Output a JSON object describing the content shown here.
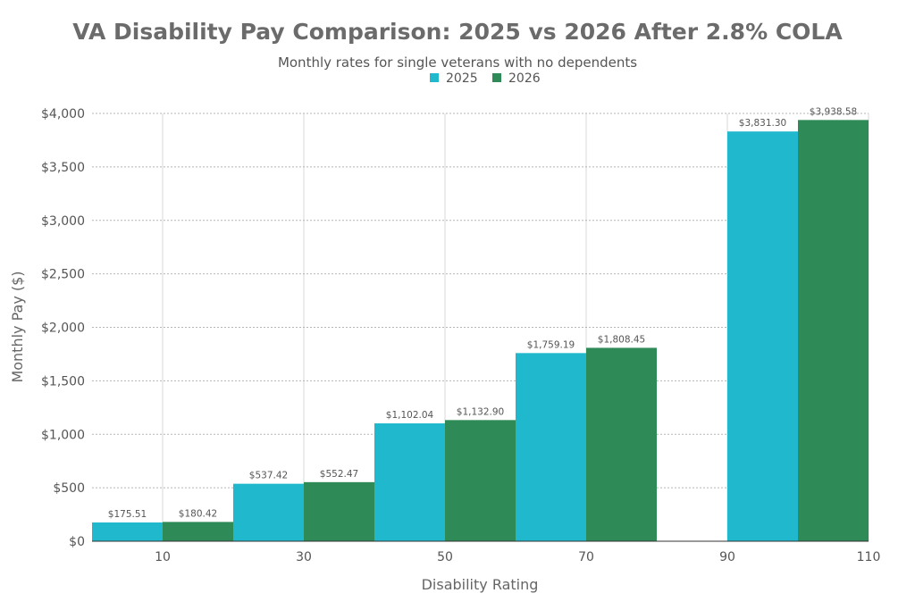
{
  "chart_data": {
    "type": "bar",
    "title": "VA Disability Pay Comparison: 2025 vs 2026 After 2.8% COLA",
    "subtitle": "Monthly rates for single veterans with no dependents",
    "xlabel": "Disability Rating",
    "ylabel": "Monthly Pay ($)",
    "x_ticks": [
      10,
      30,
      50,
      70,
      90,
      110
    ],
    "xlim": [
      0,
      110
    ],
    "ylim": [
      0,
      4000
    ],
    "y_ticks": [
      0,
      500,
      1000,
      1500,
      2000,
      2500,
      3000,
      3500,
      4000
    ],
    "y_tick_labels": [
      "$0",
      "$500",
      "$1,000",
      "$1,500",
      "$2,000",
      "$2,500",
      "$3,000",
      "$3,500",
      "$4,000"
    ],
    "legend_position": "top-center",
    "categories": [
      10,
      30,
      50,
      70,
      100
    ],
    "series": [
      {
        "name": "2025",
        "color": "#1fb8cc",
        "values": [
          175.51,
          537.42,
          1102.04,
          1759.19,
          3831.3
        ],
        "labels": [
          "$175.51",
          "$537.42",
          "$1,102.04",
          "$1,759.19",
          "$3,831.30"
        ]
      },
      {
        "name": "2026",
        "color": "#2e8b57",
        "values": [
          180.42,
          552.47,
          1132.9,
          1808.45,
          3938.58
        ],
        "labels": [
          "$180.42",
          "$552.47",
          "$1,132.90",
          "$1,808.45",
          "$3,938.58"
        ]
      }
    ]
  }
}
